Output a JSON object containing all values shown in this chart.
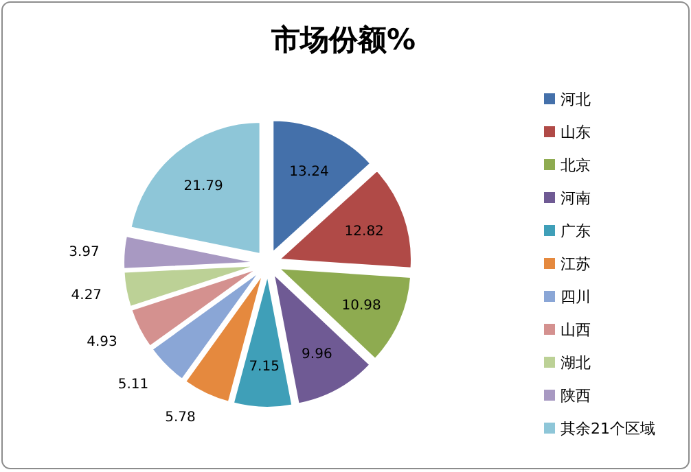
{
  "chart_data": {
    "type": "pie",
    "title": "市场份额%",
    "categories": [
      "河北",
      "山东",
      "北京",
      "河南",
      "广东",
      "江苏",
      "四川",
      "山西",
      "湖北",
      "陕西",
      "其余21个区域"
    ],
    "values": [
      13.24,
      12.82,
      10.98,
      9.96,
      7.15,
      5.78,
      5.11,
      4.93,
      4.27,
      3.97,
      21.79
    ],
    "colors": [
      "#4470aa",
      "#b04a47",
      "#8eab50",
      "#6f5a94",
      "#3f9fb8",
      "#e5893e",
      "#8aa6d6",
      "#d4918f",
      "#bcd196",
      "#a899c2",
      "#8ec6d8"
    ],
    "data_labels": true,
    "legend": "right"
  }
}
